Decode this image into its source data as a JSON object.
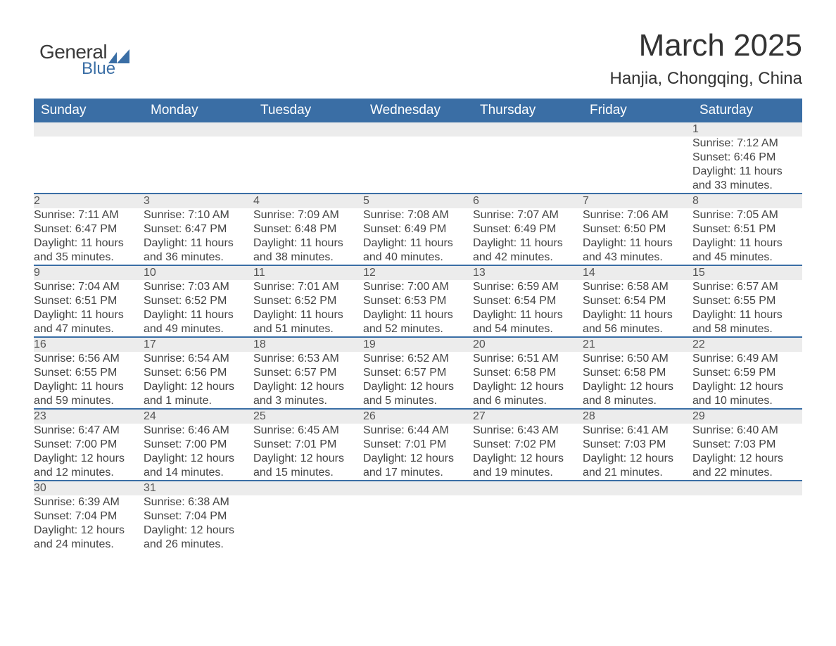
{
  "brand": {
    "text1": "General",
    "text2": "Blue",
    "accent": "#3a6ea5"
  },
  "title": "March 2025",
  "location": "Hanjia, Chongqing, China",
  "colors": {
    "header_bg": "#3a6ea5",
    "header_fg": "#ffffff",
    "daynum_bg": "#ececec",
    "row_divider": "#3a6ea5",
    "text": "#3a3a3a"
  },
  "weekdays": [
    "Sunday",
    "Monday",
    "Tuesday",
    "Wednesday",
    "Thursday",
    "Friday",
    "Saturday"
  ],
  "weeks": [
    [
      null,
      null,
      null,
      null,
      null,
      null,
      {
        "n": "1",
        "sunrise": "Sunrise: 7:12 AM",
        "sunset": "Sunset: 6:46 PM",
        "d1": "Daylight: 11 hours",
        "d2": "and 33 minutes."
      }
    ],
    [
      {
        "n": "2",
        "sunrise": "Sunrise: 7:11 AM",
        "sunset": "Sunset: 6:47 PM",
        "d1": "Daylight: 11 hours",
        "d2": "and 35 minutes."
      },
      {
        "n": "3",
        "sunrise": "Sunrise: 7:10 AM",
        "sunset": "Sunset: 6:47 PM",
        "d1": "Daylight: 11 hours",
        "d2": "and 36 minutes."
      },
      {
        "n": "4",
        "sunrise": "Sunrise: 7:09 AM",
        "sunset": "Sunset: 6:48 PM",
        "d1": "Daylight: 11 hours",
        "d2": "and 38 minutes."
      },
      {
        "n": "5",
        "sunrise": "Sunrise: 7:08 AM",
        "sunset": "Sunset: 6:49 PM",
        "d1": "Daylight: 11 hours",
        "d2": "and 40 minutes."
      },
      {
        "n": "6",
        "sunrise": "Sunrise: 7:07 AM",
        "sunset": "Sunset: 6:49 PM",
        "d1": "Daylight: 11 hours",
        "d2": "and 42 minutes."
      },
      {
        "n": "7",
        "sunrise": "Sunrise: 7:06 AM",
        "sunset": "Sunset: 6:50 PM",
        "d1": "Daylight: 11 hours",
        "d2": "and 43 minutes."
      },
      {
        "n": "8",
        "sunrise": "Sunrise: 7:05 AM",
        "sunset": "Sunset: 6:51 PM",
        "d1": "Daylight: 11 hours",
        "d2": "and 45 minutes."
      }
    ],
    [
      {
        "n": "9",
        "sunrise": "Sunrise: 7:04 AM",
        "sunset": "Sunset: 6:51 PM",
        "d1": "Daylight: 11 hours",
        "d2": "and 47 minutes."
      },
      {
        "n": "10",
        "sunrise": "Sunrise: 7:03 AM",
        "sunset": "Sunset: 6:52 PM",
        "d1": "Daylight: 11 hours",
        "d2": "and 49 minutes."
      },
      {
        "n": "11",
        "sunrise": "Sunrise: 7:01 AM",
        "sunset": "Sunset: 6:52 PM",
        "d1": "Daylight: 11 hours",
        "d2": "and 51 minutes."
      },
      {
        "n": "12",
        "sunrise": "Sunrise: 7:00 AM",
        "sunset": "Sunset: 6:53 PM",
        "d1": "Daylight: 11 hours",
        "d2": "and 52 minutes."
      },
      {
        "n": "13",
        "sunrise": "Sunrise: 6:59 AM",
        "sunset": "Sunset: 6:54 PM",
        "d1": "Daylight: 11 hours",
        "d2": "and 54 minutes."
      },
      {
        "n": "14",
        "sunrise": "Sunrise: 6:58 AM",
        "sunset": "Sunset: 6:54 PM",
        "d1": "Daylight: 11 hours",
        "d2": "and 56 minutes."
      },
      {
        "n": "15",
        "sunrise": "Sunrise: 6:57 AM",
        "sunset": "Sunset: 6:55 PM",
        "d1": "Daylight: 11 hours",
        "d2": "and 58 minutes."
      }
    ],
    [
      {
        "n": "16",
        "sunrise": "Sunrise: 6:56 AM",
        "sunset": "Sunset: 6:55 PM",
        "d1": "Daylight: 11 hours",
        "d2": "and 59 minutes."
      },
      {
        "n": "17",
        "sunrise": "Sunrise: 6:54 AM",
        "sunset": "Sunset: 6:56 PM",
        "d1": "Daylight: 12 hours",
        "d2": "and 1 minute."
      },
      {
        "n": "18",
        "sunrise": "Sunrise: 6:53 AM",
        "sunset": "Sunset: 6:57 PM",
        "d1": "Daylight: 12 hours",
        "d2": "and 3 minutes."
      },
      {
        "n": "19",
        "sunrise": "Sunrise: 6:52 AM",
        "sunset": "Sunset: 6:57 PM",
        "d1": "Daylight: 12 hours",
        "d2": "and 5 minutes."
      },
      {
        "n": "20",
        "sunrise": "Sunrise: 6:51 AM",
        "sunset": "Sunset: 6:58 PM",
        "d1": "Daylight: 12 hours",
        "d2": "and 6 minutes."
      },
      {
        "n": "21",
        "sunrise": "Sunrise: 6:50 AM",
        "sunset": "Sunset: 6:58 PM",
        "d1": "Daylight: 12 hours",
        "d2": "and 8 minutes."
      },
      {
        "n": "22",
        "sunrise": "Sunrise: 6:49 AM",
        "sunset": "Sunset: 6:59 PM",
        "d1": "Daylight: 12 hours",
        "d2": "and 10 minutes."
      }
    ],
    [
      {
        "n": "23",
        "sunrise": "Sunrise: 6:47 AM",
        "sunset": "Sunset: 7:00 PM",
        "d1": "Daylight: 12 hours",
        "d2": "and 12 minutes."
      },
      {
        "n": "24",
        "sunrise": "Sunrise: 6:46 AM",
        "sunset": "Sunset: 7:00 PM",
        "d1": "Daylight: 12 hours",
        "d2": "and 14 minutes."
      },
      {
        "n": "25",
        "sunrise": "Sunrise: 6:45 AM",
        "sunset": "Sunset: 7:01 PM",
        "d1": "Daylight: 12 hours",
        "d2": "and 15 minutes."
      },
      {
        "n": "26",
        "sunrise": "Sunrise: 6:44 AM",
        "sunset": "Sunset: 7:01 PM",
        "d1": "Daylight: 12 hours",
        "d2": "and 17 minutes."
      },
      {
        "n": "27",
        "sunrise": "Sunrise: 6:43 AM",
        "sunset": "Sunset: 7:02 PM",
        "d1": "Daylight: 12 hours",
        "d2": "and 19 minutes."
      },
      {
        "n": "28",
        "sunrise": "Sunrise: 6:41 AM",
        "sunset": "Sunset: 7:03 PM",
        "d1": "Daylight: 12 hours",
        "d2": "and 21 minutes."
      },
      {
        "n": "29",
        "sunrise": "Sunrise: 6:40 AM",
        "sunset": "Sunset: 7:03 PM",
        "d1": "Daylight: 12 hours",
        "d2": "and 22 minutes."
      }
    ],
    [
      {
        "n": "30",
        "sunrise": "Sunrise: 6:39 AM",
        "sunset": "Sunset: 7:04 PM",
        "d1": "Daylight: 12 hours",
        "d2": "and 24 minutes."
      },
      {
        "n": "31",
        "sunrise": "Sunrise: 6:38 AM",
        "sunset": "Sunset: 7:04 PM",
        "d1": "Daylight: 12 hours",
        "d2": "and 26 minutes."
      },
      null,
      null,
      null,
      null,
      null
    ]
  ]
}
